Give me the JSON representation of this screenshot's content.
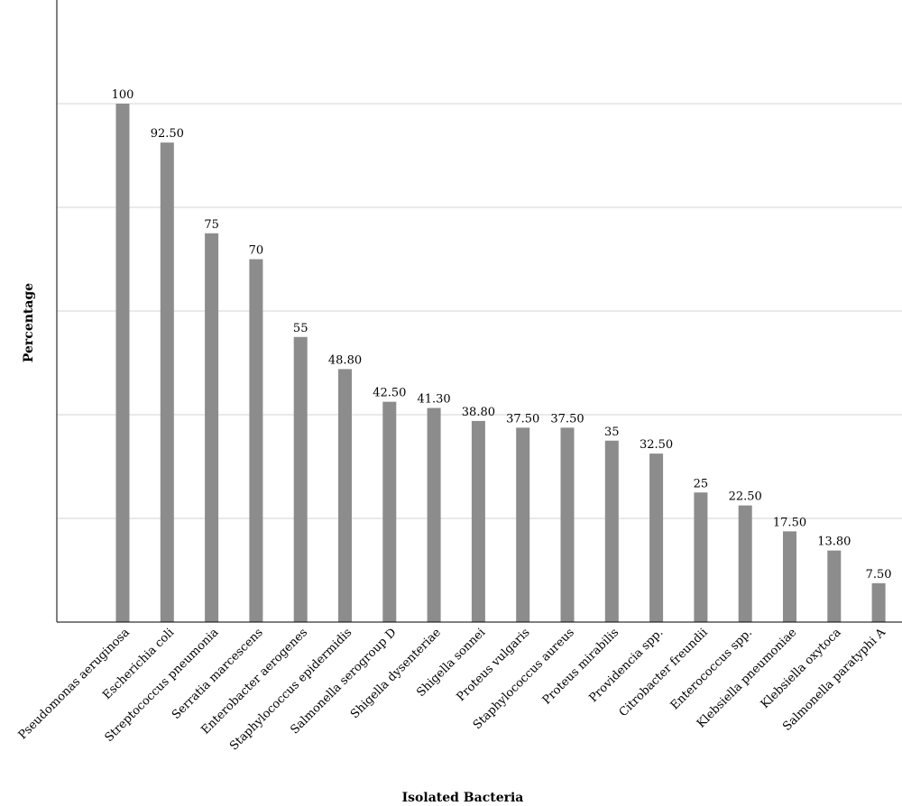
{
  "chart_data": {
    "type": "bar",
    "xlabel": "Isolated Bacteria",
    "ylabel": "Percentage",
    "ylim": [
      0,
      120
    ],
    "grid": true,
    "bar_color": "#8c8c8c",
    "categories": [
      "Pseudomonas aeruginosa",
      "Escherichia coli",
      "Streptococcus pneumonia",
      "Serratia marcescens",
      "Enterobacter aerogenes",
      "Staphylococcus epidermidis",
      "Salmonella serogroup D",
      "Shigella dysenteriae",
      "Shigella sonnei",
      "Proteus vulgaris",
      "Staphylococcus aureus",
      "Proteus mirabilis",
      "Providencia spp.",
      "Citrobacter freundii",
      "Enterococcus spp.",
      "Klebsiella pneumoniae",
      "Klebsiella oxytoca",
      "Salmonella paratyphi A"
    ],
    "values": [
      100,
      92.5,
      75,
      70,
      55,
      48.8,
      42.5,
      41.3,
      38.8,
      37.5,
      37.5,
      35,
      32.5,
      25,
      22.5,
      17.5,
      13.8,
      7.5
    ],
    "value_labels": [
      "100",
      "92.50",
      "75",
      "70",
      "55",
      "48.80",
      "42.50",
      "41.30",
      "38.80",
      "37.50",
      "37.50",
      "35",
      "32.50",
      "25",
      "22.50",
      "17.50",
      "13.80",
      "7.50"
    ]
  }
}
